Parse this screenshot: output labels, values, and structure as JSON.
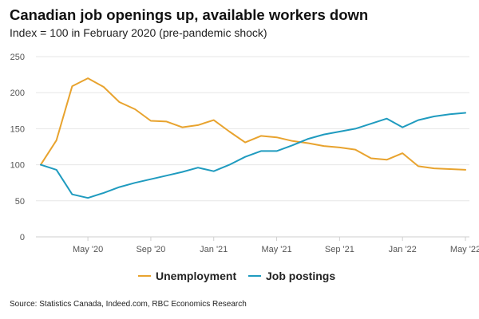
{
  "chart_data": {
    "type": "line",
    "title": "Canadian job openings up, available workers down",
    "subtitle": "Index = 100 in February 2020 (pre-pandemic shock)",
    "source": "Source: Statistics Canada, Indeed.com, RBC Economics Research",
    "xlabel": "",
    "ylabel": "",
    "ylim": [
      0,
      250
    ],
    "yticks": [
      0,
      50,
      100,
      150,
      200,
      250
    ],
    "grid": true,
    "x": [
      "Feb 2020",
      "Mar 2020",
      "Apr 2020",
      "May 2020",
      "Jun 2020",
      "Jul 2020",
      "Aug 2020",
      "Sep 2020",
      "Oct 2020",
      "Nov 2020",
      "Dec 2020",
      "Jan 2021",
      "Feb 2021",
      "Mar 2021",
      "Apr 2021",
      "May 2021",
      "Jun 2021",
      "Jul 2021",
      "Aug 2021",
      "Sep 2021",
      "Oct 2021",
      "Nov 2021",
      "Dec 2021",
      "Jan 2022",
      "Feb 2022",
      "Mar 2022",
      "Apr 2022",
      "May 2022"
    ],
    "xticks": [
      {
        "index": 3,
        "label": "May '20"
      },
      {
        "index": 7,
        "label": "Sep '20"
      },
      {
        "index": 11,
        "label": "Jan '21"
      },
      {
        "index": 15,
        "label": "May '21"
      },
      {
        "index": 19,
        "label": "Sep '21"
      },
      {
        "index": 23,
        "label": "Jan '22"
      },
      {
        "index": 27,
        "label": "May '22"
      }
    ],
    "legend_position": "bottom-center",
    "series": [
      {
        "name": "Unemployment",
        "color": "#e8a32e",
        "values": [
          100,
          134,
          209,
          220,
          208,
          187,
          177,
          161,
          160,
          152,
          155,
          162,
          146,
          131,
          140,
          138,
          133,
          130,
          126,
          124,
          121,
          109,
          107,
          116,
          98,
          95,
          94,
          93
        ]
      },
      {
        "name": "Job postings",
        "color": "#1f9bbf",
        "values": [
          100,
          93,
          59,
          54,
          61,
          69,
          75,
          80,
          85,
          90,
          96,
          91,
          100,
          111,
          119,
          119,
          127,
          136,
          142,
          146,
          150,
          157,
          164,
          152,
          162,
          167,
          170,
          172
        ]
      }
    ]
  }
}
